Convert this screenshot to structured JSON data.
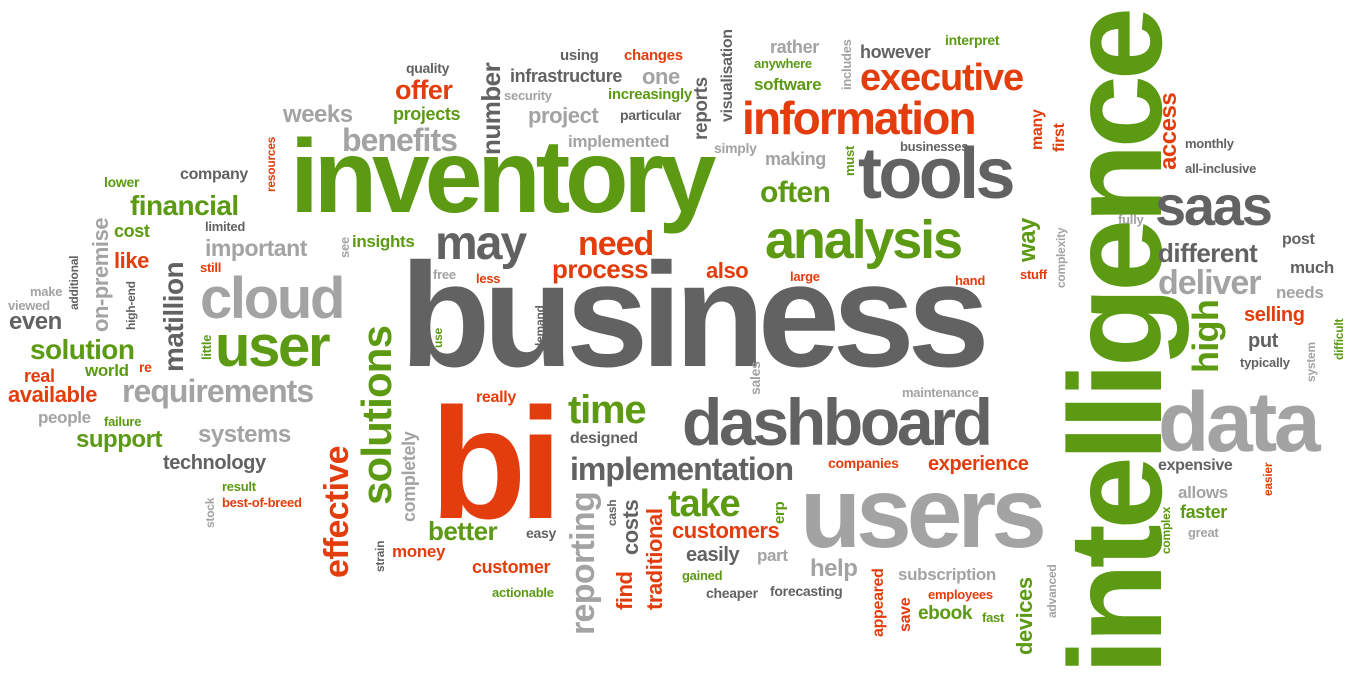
{
  "colors": {
    "green": "#5b9a12",
    "dark_gray": "#626262",
    "light_gray": "#a3a3a3",
    "red": "#e43d0d"
  },
  "words": {
    "business": "business",
    "bi": "bi",
    "intelligence": "intelligence",
    "inventory": "inventory",
    "users": "users",
    "dashboard": "dashboard",
    "data": "data",
    "tools": "tools",
    "analysis": "analysis",
    "information": "information",
    "executive": "executive",
    "may": "may",
    "cloud": "cloud",
    "user": "user",
    "saas": "saas",
    "solutions": "solutions",
    "time": "time",
    "take": "take",
    "implementation": "implementation",
    "requirements": "requirements",
    "benefits": "benefits",
    "need": "need",
    "process": "process",
    "deliver": "deliver",
    "different": "different",
    "effective": "effective",
    "reporting": "reporting",
    "high": "high",
    "often": "often",
    "weeks": "weeks",
    "offer": "offer",
    "projects": "projects",
    "quality": "quality",
    "number": "number",
    "infrastructure": "infrastructure",
    "one": "one",
    "using": "using",
    "changes": "changes",
    "increasingly": "increasingly",
    "security": "security",
    "project": "project",
    "particular": "particular",
    "implemented": "implemented",
    "reports": "reports",
    "visualisation": "visualisation",
    "rather": "rather",
    "anywhere": "anywhere",
    "software": "software",
    "includes": "includes",
    "however": "however",
    "interpret": "interpret",
    "many": "many",
    "first": "first",
    "access": "access",
    "monthly": "monthly",
    "all_inclusive": "all-inclusive",
    "fully": "fully",
    "post": "post",
    "much": "much",
    "needs": "needs",
    "selling": "selling",
    "difficult": "difficult",
    "put": "put",
    "typically": "typically",
    "system": "system",
    "simply": "simply",
    "making": "making",
    "must": "must",
    "businesses": "businesses",
    "way": "way",
    "complexity": "complexity",
    "stuff": "stuff",
    "hand": "hand",
    "large": "large",
    "also": "also",
    "less": "less",
    "free": "free",
    "insights": "insights",
    "see": "see",
    "important": "important",
    "still": "still",
    "limited": "limited",
    "company": "company",
    "resources": "resources",
    "lower": "lower",
    "financial": "financial",
    "cost": "cost",
    "like": "like",
    "on_premise": "on-premise",
    "additional": "additional",
    "make": "make",
    "viewed": "viewed",
    "even": "even",
    "high_end": "high-end",
    "matillion": "matillion",
    "solution": "solution",
    "little": "little",
    "world": "world",
    "re": "re",
    "real": "real",
    "available": "available",
    "people": "people",
    "failure": "failure",
    "support": "support",
    "systems": "systems",
    "technology": "technology",
    "result": "result",
    "best_of_breed": "best-of-breed",
    "stock": "stock",
    "use": "use",
    "demand": "demand",
    "sales": "sales",
    "maintenance": "maintenance",
    "really": "really",
    "completely": "completely",
    "designed": "designed",
    "companies": "companies",
    "experience": "experience",
    "expensive": "expensive",
    "easier": "easier",
    "allows": "allows",
    "faster": "faster",
    "great": "great",
    "complex": "complex",
    "better": "better",
    "easy": "easy",
    "money": "money",
    "customer": "customer",
    "actionable": "actionable",
    "strain": "strain",
    "cash": "cash",
    "costs": "costs",
    "find": "find",
    "traditional": "traditional",
    "customers": "customers",
    "erp": "erp",
    "easily": "easily",
    "part": "part",
    "gained": "gained",
    "cheaper": "cheaper",
    "forecasting": "forecasting",
    "help": "help",
    "appeared": "appeared",
    "subscription": "subscription",
    "save": "save",
    "employees": "employees",
    "ebook": "ebook",
    "fast": "fast",
    "devices": "devices",
    "advanced": "advanced"
  }
}
